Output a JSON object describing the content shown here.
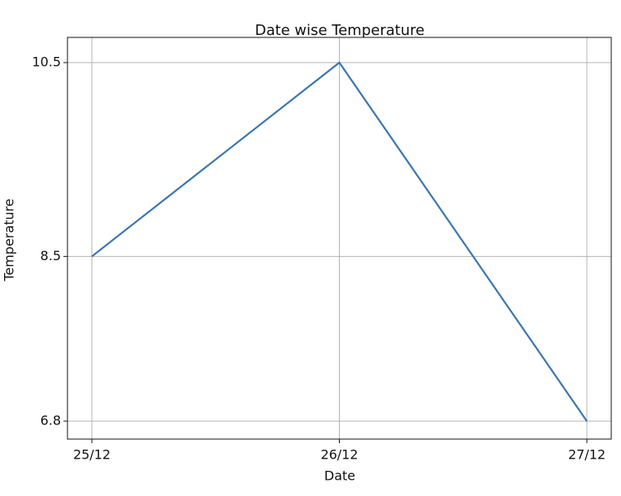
{
  "chart_data": {
    "type": "line",
    "title": "Date wise Temperature",
    "x_label": "Date",
    "y_label": "Temperature",
    "categories": [
      "25/12",
      "26/12",
      "27/12"
    ],
    "series": [
      {
        "name": "Temperature",
        "color": "#3a75b0",
        "values": [
          8.5,
          10.5,
          6.8
        ]
      }
    ],
    "ylim": [
      6.615,
      10.76
    ],
    "yticks": [
      6.8,
      8.5,
      10.5
    ],
    "grid": true
  }
}
